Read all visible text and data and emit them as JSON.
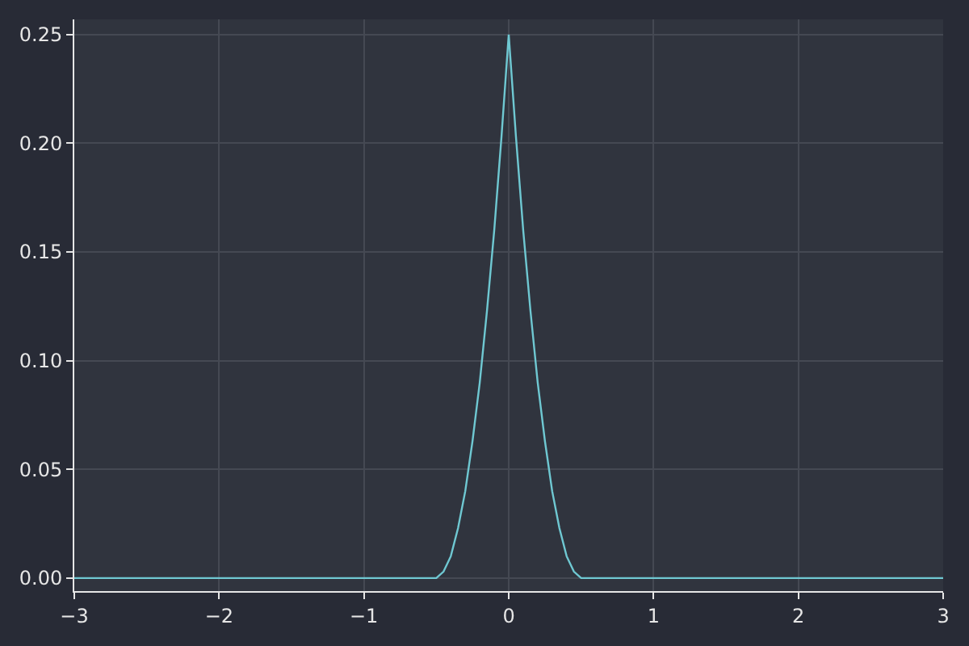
{
  "chart_data": {
    "type": "line",
    "x": [
      -3,
      -0.5,
      -0.45,
      -0.4,
      -0.35,
      -0.3,
      -0.25,
      -0.2,
      -0.15,
      -0.1,
      -0.05,
      0,
      0.05,
      0.1,
      0.15,
      0.2,
      0.25,
      0.3,
      0.35,
      0.4,
      0.45,
      0.5,
      3
    ],
    "series": [
      {
        "color": "#6fc8d2",
        "values": [
          0,
          0,
          0.003,
          0.01,
          0.023,
          0.04,
          0.063,
          0.09,
          0.123,
          0.16,
          0.203,
          0.25,
          0.203,
          0.16,
          0.123,
          0.09,
          0.063,
          0.04,
          0.023,
          0.01,
          0.003,
          0,
          0
        ]
      }
    ],
    "xlim": [
      -3,
      3
    ],
    "xticks": [
      -3,
      -2,
      -1,
      0,
      1,
      2,
      3
    ],
    "ylim": [
      -0.006,
      0.257
    ],
    "yticks": [
      {
        "value": 0,
        "label": "0.00"
      },
      {
        "value": 0.05,
        "label": "0.05"
      },
      {
        "value": 0.1,
        "label": "0.10"
      },
      {
        "value": 0.15,
        "label": "0.15"
      },
      {
        "value": 0.2,
        "label": "0.20"
      },
      {
        "value": 0.25,
        "label": "0.25"
      }
    ],
    "grid": true,
    "legend": false
  }
}
